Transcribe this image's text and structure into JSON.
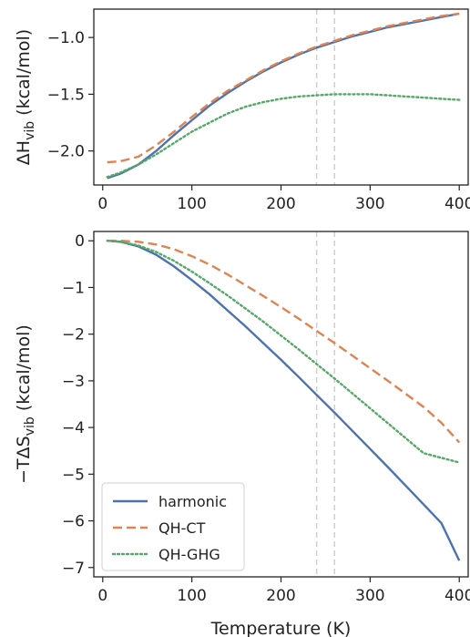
{
  "chart_data": [
    {
      "type": "line",
      "ylabel": "ΔH_vib (kcal/mol)",
      "xlabel": "",
      "xlim": [
        -10,
        410
      ],
      "ylim": [
        -2.3,
        -0.75
      ],
      "xticks": [
        0,
        100,
        200,
        300,
        400
      ],
      "yticks": [
        -2.0,
        -1.5,
        -1.0
      ],
      "ytick_labels": [
        "−2.0",
        "−1.5",
        "−1.0"
      ],
      "xtick_labels": [
        "0",
        "100",
        "200",
        "300",
        "400"
      ],
      "reference_lines_x": [
        240,
        260
      ],
      "series": [
        {
          "name": "harmonic",
          "color": "#4c72b0",
          "dash": "solid",
          "x": [
            5,
            20,
            40,
            60,
            80,
            100,
            120,
            140,
            160,
            180,
            200,
            220,
            240,
            260,
            280,
            300,
            320,
            340,
            360,
            380,
            400
          ],
          "y": [
            -2.24,
            -2.2,
            -2.12,
            -2.0,
            -1.86,
            -1.73,
            -1.6,
            -1.49,
            -1.39,
            -1.3,
            -1.22,
            -1.15,
            -1.09,
            -1.04,
            -0.99,
            -0.95,
            -0.91,
            -0.88,
            -0.85,
            -0.82,
            -0.79
          ]
        },
        {
          "name": "QH-CT",
          "color": "#dd8452",
          "dash": "dashed",
          "x": [
            5,
            20,
            40,
            60,
            80,
            100,
            120,
            140,
            160,
            180,
            200,
            220,
            240,
            260,
            280,
            300,
            320,
            340,
            360,
            380,
            400
          ],
          "y": [
            -2.1,
            -2.09,
            -2.05,
            -1.95,
            -1.83,
            -1.7,
            -1.58,
            -1.47,
            -1.38,
            -1.29,
            -1.21,
            -1.14,
            -1.08,
            -1.03,
            -0.98,
            -0.94,
            -0.9,
            -0.87,
            -0.84,
            -0.81,
            -0.79
          ]
        },
        {
          "name": "QH-GHG",
          "color": "#55a868",
          "dash": "dotted",
          "x": [
            5,
            20,
            40,
            60,
            80,
            100,
            120,
            140,
            160,
            180,
            200,
            220,
            240,
            260,
            280,
            300,
            320,
            340,
            360,
            380,
            400
          ],
          "y": [
            -2.23,
            -2.19,
            -2.12,
            -2.03,
            -1.93,
            -1.83,
            -1.75,
            -1.67,
            -1.61,
            -1.57,
            -1.54,
            -1.52,
            -1.51,
            -1.5,
            -1.5,
            -1.5,
            -1.51,
            -1.52,
            -1.53,
            -1.54,
            -1.55
          ]
        }
      ]
    },
    {
      "type": "line",
      "ylabel": "−TΔS_vib (kcal/mol)",
      "xlabel": "Temperature (K)",
      "xlim": [
        -10,
        410
      ],
      "ylim": [
        -7.2,
        0.2
      ],
      "xticks": [
        0,
        100,
        200,
        300,
        400
      ],
      "yticks": [
        0,
        -1,
        -2,
        -3,
        -4,
        -5,
        -6,
        -7
      ],
      "ytick_labels": [
        "0",
        "−1",
        "−2",
        "−3",
        "−4",
        "−5",
        "−6",
        "−7"
      ],
      "xtick_labels": [
        "0",
        "100",
        "200",
        "300",
        "400"
      ],
      "reference_lines_x": [
        240,
        260
      ],
      "legend": {
        "position": "lower-left",
        "entries": [
          "harmonic",
          "QH-CT",
          "QH-GHG"
        ]
      },
      "series": [
        {
          "name": "harmonic",
          "color": "#4c72b0",
          "dash": "solid",
          "x": [
            5,
            20,
            40,
            60,
            80,
            100,
            120,
            140,
            160,
            180,
            200,
            220,
            240,
            260,
            280,
            300,
            320,
            340,
            360,
            380,
            400
          ],
          "y": [
            0.0,
            -0.02,
            -0.12,
            -0.3,
            -0.55,
            -0.84,
            -1.15,
            -1.49,
            -1.83,
            -2.19,
            -2.55,
            -2.92,
            -3.3,
            -3.68,
            -4.07,
            -4.46,
            -4.85,
            -5.25,
            -5.65,
            -6.05,
            -6.85
          ]
        },
        {
          "name": "QH-CT",
          "color": "#dd8452",
          "dash": "dashed",
          "x": [
            5,
            20,
            40,
            60,
            80,
            100,
            120,
            140,
            160,
            180,
            200,
            220,
            240,
            260,
            280,
            300,
            320,
            340,
            360,
            380,
            400
          ],
          "y": [
            0.0,
            0.0,
            -0.02,
            -0.08,
            -0.18,
            -0.33,
            -0.51,
            -0.72,
            -0.95,
            -1.18,
            -1.42,
            -1.67,
            -1.93,
            -2.19,
            -2.46,
            -2.73,
            -3.0,
            -3.28,
            -3.56,
            -3.9,
            -4.32
          ]
        },
        {
          "name": "QH-GHG",
          "color": "#55a868",
          "dash": "dotted",
          "x": [
            5,
            20,
            40,
            60,
            80,
            100,
            120,
            140,
            160,
            180,
            200,
            220,
            240,
            260,
            280,
            300,
            320,
            340,
            360,
            380,
            400
          ],
          "y": [
            0.0,
            -0.02,
            -0.1,
            -0.24,
            -0.43,
            -0.66,
            -0.91,
            -1.17,
            -1.45,
            -1.73,
            -2.03,
            -2.33,
            -2.64,
            -2.95,
            -3.27,
            -3.59,
            -3.91,
            -4.23,
            -4.55,
            -4.65,
            -4.75
          ]
        }
      ]
    }
  ]
}
